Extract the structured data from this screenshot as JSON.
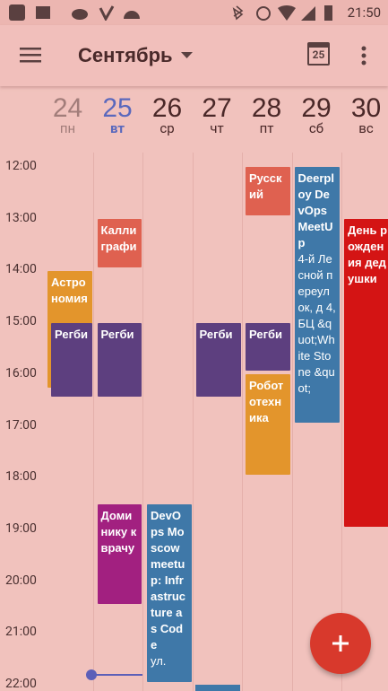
{
  "status_bar": {
    "time": "21:50"
  },
  "toolbar": {
    "title": "Сентябрь",
    "calendar_icon_day": "25"
  },
  "days": [
    {
      "date": "24",
      "weekday": "пн"
    },
    {
      "date": "25",
      "weekday": "вт"
    },
    {
      "date": "26",
      "weekday": "ср"
    },
    {
      "date": "27",
      "weekday": "чт"
    },
    {
      "date": "28",
      "weekday": "пт"
    },
    {
      "date": "29",
      "weekday": "сб"
    },
    {
      "date": "30",
      "weekday": "вс"
    }
  ],
  "hours": [
    "12:00",
    "13:00",
    "14:00",
    "15:00",
    "16:00",
    "17:00",
    "18:00",
    "19:00",
    "20:00",
    "21:00",
    "22:00"
  ],
  "events": [
    {
      "title": "Астрономия"
    },
    {
      "title": "Регби"
    },
    {
      "title": "Каллиграфи"
    },
    {
      "title": "Регби"
    },
    {
      "title": "Регби"
    },
    {
      "title": "Русский"
    },
    {
      "title": "Регби"
    },
    {
      "title": "Робототехника"
    },
    {
      "title": "Deerploy DevOps MeetUp",
      "location": "4-й Лесной переулок, д 4, БЦ &quot;White Stone &quot;"
    },
    {
      "title": "День рождения дедушки"
    },
    {
      "title": "Доминику к врачу"
    },
    {
      "title": "DevOps Moscow meetup: Infrastructure as Code",
      "location": "ул."
    }
  ]
}
